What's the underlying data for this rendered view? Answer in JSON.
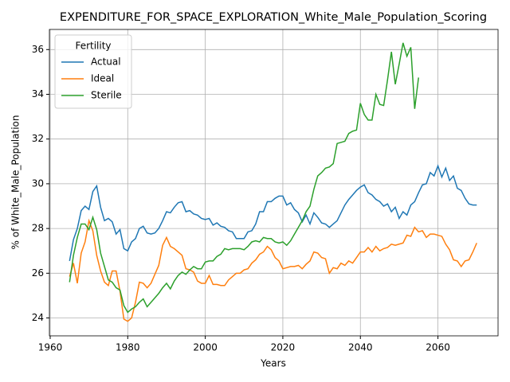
{
  "chart_data": {
    "type": "line",
    "title": "EXPENDITURE_FOR_SPACE_EXPLORATION_White_Male_Population_Scoring",
    "x_label": "Years",
    "y_label": "% of White_Male_Population",
    "legend_title": "Fertility",
    "legend_loc": "upper left",
    "grid": true,
    "xlim": [
      1959.8,
      2075.5
    ],
    "ylim": [
      23.2,
      36.9
    ],
    "xticks": [
      1960,
      1980,
      2000,
      2020,
      2040,
      2060
    ],
    "yticks": [
      24,
      26,
      28,
      30,
      32,
      34,
      36
    ],
    "x": [
      1965,
      1966,
      1967,
      1968,
      1969,
      1970,
      1971,
      1972,
      1973,
      1974,
      1975,
      1976,
      1977,
      1978,
      1979,
      1980,
      1981,
      1982,
      1983,
      1984,
      1985,
      1986,
      1987,
      1988,
      1989,
      1990,
      1991,
      1992,
      1993,
      1994,
      1995,
      1996,
      1997,
      1998,
      1999,
      2000,
      2001,
      2002,
      2003,
      2004,
      2005,
      2006,
      2007,
      2008,
      2009,
      2010,
      2011,
      2012,
      2013,
      2014,
      2015,
      2016,
      2017,
      2018,
      2019,
      2020,
      2021,
      2022,
      2023,
      2024,
      2025,
      2026,
      2027,
      2028,
      2029,
      2030,
      2031,
      2032,
      2033,
      2034,
      2035,
      2036,
      2037,
      2038,
      2039,
      2040,
      2041,
      2042,
      2043,
      2044,
      2045,
      2046,
      2047,
      2048,
      2049,
      2050,
      2051,
      2052,
      2053,
      2054,
      2055,
      2056,
      2057,
      2058,
      2059,
      2060,
      2061,
      2062,
      2063,
      2064,
      2065,
      2066,
      2067,
      2068,
      2069,
      2070
    ],
    "series": [
      {
        "name": "Actual",
        "color": "#1f77b4",
        "values": [
          26.55,
          27.5,
          28.0,
          28.8,
          29.0,
          28.85,
          29.65,
          29.9,
          28.95,
          28.35,
          28.45,
          28.3,
          27.75,
          27.95,
          27.1,
          27.0,
          27.4,
          27.55,
          28.0,
          28.1,
          27.8,
          27.75,
          27.8,
          28.0,
          28.35,
          28.75,
          28.7,
          28.95,
          29.15,
          29.2,
          28.75,
          28.8,
          28.65,
          28.6,
          28.45,
          28.4,
          28.45,
          28.15,
          28.25,
          28.1,
          28.05,
          27.9,
          27.85,
          27.55,
          27.55,
          27.55,
          27.85,
          27.9,
          28.2,
          28.75,
          28.75,
          29.2,
          29.2,
          29.35,
          29.45,
          29.45,
          29.05,
          29.15,
          28.85,
          28.7,
          28.3,
          28.6,
          28.2,
          28.7,
          28.5,
          28.25,
          28.2,
          28.05,
          28.2,
          28.35,
          28.7,
          29.05,
          29.3,
          29.5,
          29.7,
          29.85,
          29.95,
          29.6,
          29.5,
          29.3,
          29.2,
          29.0,
          29.1,
          28.75,
          28.95,
          28.45,
          28.75,
          28.6,
          29.05,
          29.2,
          29.6,
          29.95,
          30.0,
          30.5,
          30.35,
          30.8,
          30.3,
          30.7,
          30.15,
          30.35,
          29.8,
          29.7,
          29.35,
          29.1,
          29.05,
          29.05
        ]
      },
      {
        "name": "Ideal",
        "color": "#ff7f0e",
        "values": [
          25.85,
          26.45,
          25.55,
          26.9,
          27.4,
          28.35,
          27.9,
          26.8,
          26.1,
          25.6,
          25.45,
          26.1,
          26.1,
          25.2,
          23.95,
          23.85,
          24.0,
          24.7,
          25.6,
          25.55,
          25.35,
          25.55,
          25.95,
          26.35,
          27.25,
          27.6,
          27.2,
          27.1,
          26.95,
          26.8,
          26.2,
          26.15,
          26.05,
          25.65,
          25.55,
          25.55,
          25.9,
          25.5,
          25.5,
          25.45,
          25.45,
          25.7,
          25.85,
          26.0,
          26.0,
          26.15,
          26.2,
          26.45,
          26.6,
          26.85,
          26.95,
          27.2,
          27.05,
          26.7,
          26.55,
          26.2,
          26.25,
          26.3,
          26.3,
          26.35,
          26.2,
          26.4,
          26.55,
          26.95,
          26.9,
          26.7,
          26.65,
          26.0,
          26.25,
          26.2,
          26.45,
          26.35,
          26.55,
          26.45,
          26.7,
          26.95,
          26.95,
          27.15,
          26.95,
          27.2,
          27.0,
          27.1,
          27.15,
          27.3,
          27.25,
          27.3,
          27.35,
          27.7,
          27.65,
          28.05,
          27.85,
          27.9,
          27.6,
          27.75,
          27.75,
          27.7,
          27.65,
          27.3,
          27.05,
          26.6,
          26.55,
          26.3,
          26.55,
          26.6,
          26.95,
          27.35
        ]
      },
      {
        "name": "Sterile",
        "color": "#2ca02c",
        "values": [
          25.6,
          26.8,
          27.6,
          28.2,
          28.2,
          27.95,
          28.5,
          27.95,
          26.9,
          26.3,
          25.7,
          25.6,
          25.35,
          25.25,
          24.55,
          24.25,
          24.4,
          24.5,
          24.7,
          24.85,
          24.5,
          24.7,
          24.9,
          25.1,
          25.35,
          25.55,
          25.3,
          25.65,
          25.9,
          26.05,
          25.95,
          26.15,
          26.3,
          26.2,
          26.2,
          26.5,
          26.55,
          26.55,
          26.75,
          26.85,
          27.1,
          27.05,
          27.1,
          27.1,
          27.1,
          27.05,
          27.2,
          27.4,
          27.45,
          27.4,
          27.6,
          27.55,
          27.55,
          27.4,
          27.35,
          27.4,
          27.25,
          27.45,
          27.75,
          28.05,
          28.35,
          28.75,
          29.0,
          29.75,
          30.35,
          30.5,
          30.7,
          30.75,
          30.9,
          31.8,
          31.85,
          31.9,
          32.25,
          32.35,
          32.4,
          33.6,
          33.1,
          32.85,
          32.85,
          34.0,
          33.55,
          33.5,
          34.65,
          35.9,
          34.45,
          35.35,
          36.3,
          35.7,
          36.1,
          33.35,
          34.75,
          null,
          null,
          null,
          null,
          null,
          null,
          null,
          null,
          null,
          null,
          null,
          null,
          null,
          null,
          null
        ]
      }
    ]
  }
}
